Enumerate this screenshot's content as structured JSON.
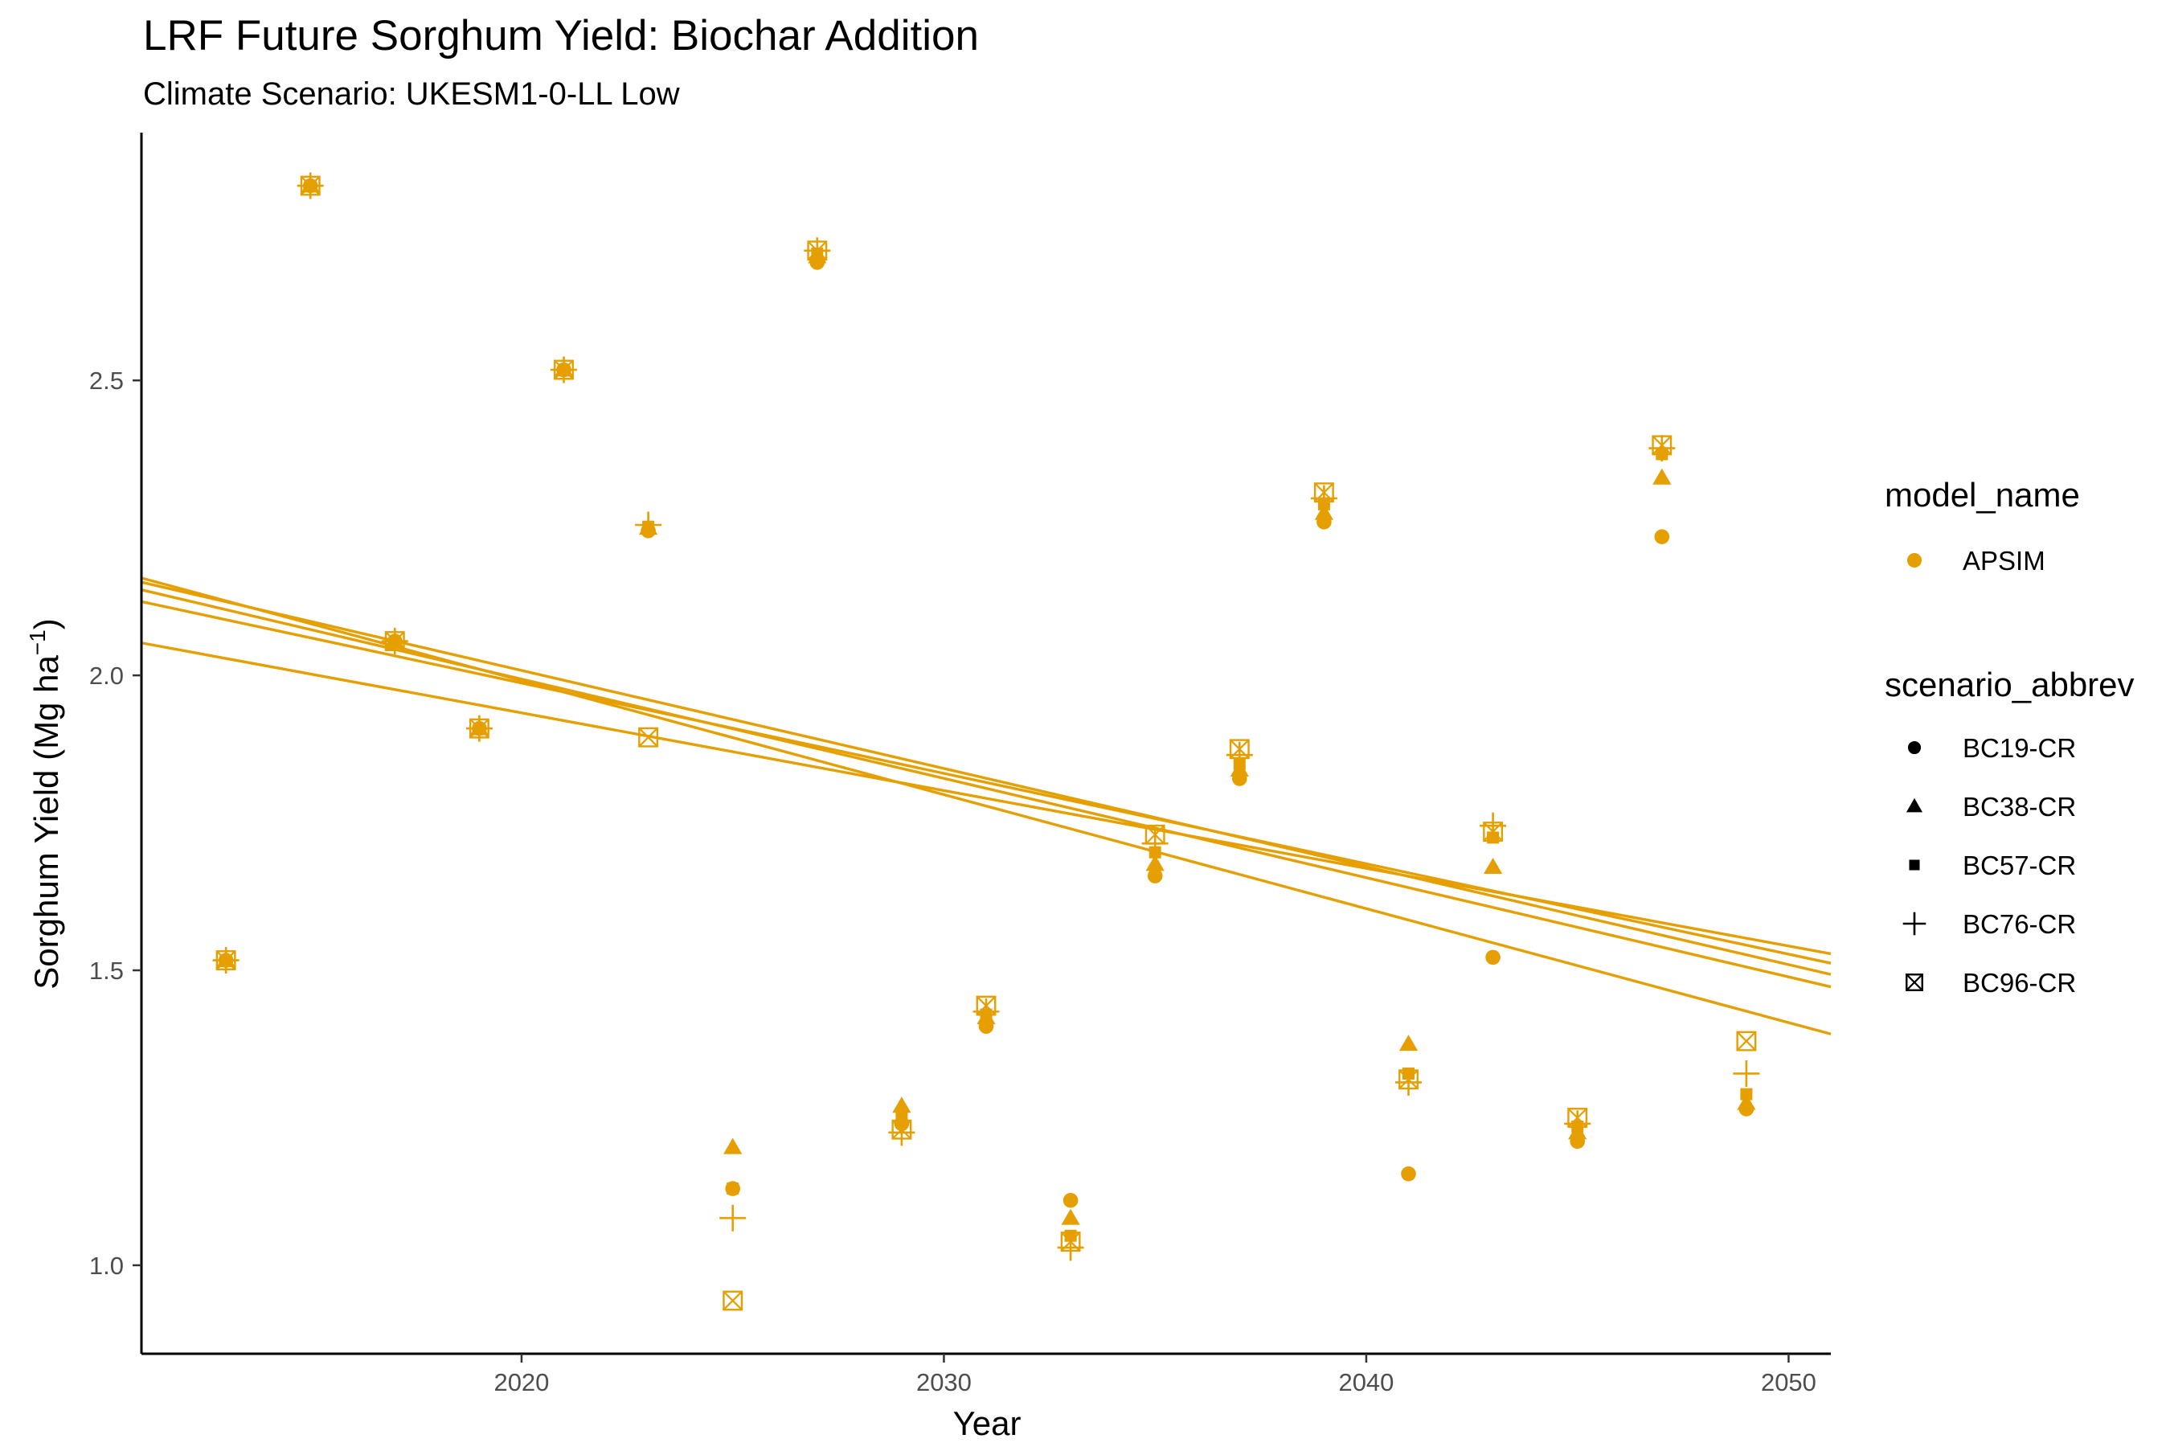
{
  "chart_data": {
    "type": "scatter",
    "title": "LRF Future Sorghum Yield: Biochar Addition",
    "subtitle": "Climate Scenario: UKESM1-0-LL Low",
    "xlabel": "Year",
    "ylabel_main": "Sorghum Yield (Mg ha",
    "ylabel_sup": "−1",
    "ylabel_close": ")",
    "xlim": [
      2011,
      2051
    ],
    "ylim": [
      0.85,
      2.92
    ],
    "x_ticks": [
      2020,
      2030,
      2040,
      2050
    ],
    "y_ticks": [
      1.0,
      1.5,
      2.0,
      2.5
    ],
    "x_tick_labels": [
      "2020",
      "2030",
      "2040",
      "2050"
    ],
    "y_tick_labels": [
      "1.0",
      "1.5",
      "2.0",
      "2.5"
    ],
    "grid": false,
    "color": "#E69F00",
    "legend": {
      "placement": "right",
      "color_title": "model_name",
      "color_entries": [
        "APSIM"
      ],
      "shape_title": "scenario_abbrev",
      "shape_entries": [
        "BC19-CR",
        "BC38-CR",
        "BC57-CR",
        "BC76-CR",
        "BC96-CR"
      ]
    },
    "x": [
      2013,
      2015,
      2017,
      2019,
      2021,
      2023,
      2025,
      2027,
      2029,
      2031,
      2033,
      2035,
      2037,
      2039,
      2041,
      2043,
      2045,
      2047,
      2049
    ],
    "series": [
      {
        "name": "BC19-CR",
        "shape": "circle",
        "values": [
          1.517,
          2.83,
          2.058,
          1.91,
          2.518,
          2.245,
          1.13,
          2.7,
          1.24,
          1.405,
          1.11,
          1.66,
          1.825,
          2.26,
          1.155,
          1.522,
          1.21,
          2.235,
          1.265
        ],
        "trend": [
          2.158,
          1.493
        ]
      },
      {
        "name": "BC38-CR",
        "shape": "triangle",
        "values": [
          1.517,
          2.83,
          2.058,
          1.91,
          2.518,
          2.25,
          1.2,
          2.71,
          1.27,
          1.42,
          1.08,
          1.68,
          1.84,
          2.275,
          1.375,
          1.675,
          1.225,
          2.335,
          1.275
        ],
        "trend": [
          2.145,
          1.472
        ]
      },
      {
        "name": "BC57-CR",
        "shape": "square",
        "values": [
          1.517,
          2.83,
          2.058,
          1.91,
          2.518,
          2.252,
          1.13,
          2.715,
          1.255,
          1.425,
          1.05,
          1.7,
          1.85,
          2.29,
          1.325,
          1.725,
          1.235,
          2.375,
          1.29
        ],
        "trend": [
          2.125,
          1.512
        ]
      },
      {
        "name": "BC76-CR",
        "shape": "plus",
        "values": [
          1.517,
          2.83,
          2.058,
          1.91,
          2.518,
          2.255,
          1.08,
          2.72,
          1.225,
          1.43,
          1.03,
          1.715,
          1.865,
          2.3,
          1.31,
          1.745,
          1.24,
          2.385,
          1.325
        ],
        "trend": [
          2.165,
          1.392
        ]
      },
      {
        "name": "BC96-CR",
        "shape": "boxx",
        "values": [
          1.517,
          2.83,
          2.058,
          1.91,
          2.518,
          1.895,
          0.94,
          2.72,
          1.23,
          1.44,
          1.04,
          1.73,
          1.875,
          2.31,
          1.315,
          1.735,
          1.25,
          2.39,
          1.38
        ],
        "trend": [
          2.055,
          1.528
        ]
      }
    ]
  }
}
